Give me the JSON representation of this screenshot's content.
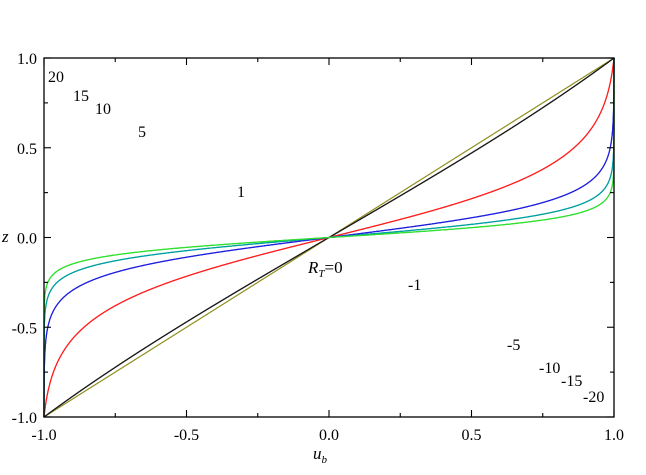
{
  "chart_data": {
    "type": "line",
    "xlabel": {
      "main": "u",
      "sub": "b"
    },
    "ylabel": "z",
    "xlim": [
      -1.0,
      1.0
    ],
    "ylim": [
      -1.0,
      1.0
    ],
    "xticks": [
      "-1.0",
      "-0.5",
      "0.0",
      "0.5",
      "1.0"
    ],
    "yticks": [
      "-1.0",
      "-0.5",
      "0.0",
      "0.5",
      "1.0"
    ],
    "annotation": {
      "main": "R",
      "sub": "T",
      "rest": "=0"
    },
    "colors": {
      "0": "#8f8f1e",
      "1": "#1a1a1a",
      "5": "#ff2020",
      "10": "#2020e0",
      "15": "#00a0a0",
      "20": "#30e030"
    },
    "series": [
      {
        "name": "20",
        "R": 20,
        "label": "20"
      },
      {
        "name": "15",
        "R": 15,
        "label": "15"
      },
      {
        "name": "10",
        "R": 10,
        "label": "10"
      },
      {
        "name": "5",
        "R": 5,
        "label": "5"
      },
      {
        "name": "1",
        "R": 1,
        "label": "1"
      },
      {
        "name": "0",
        "R": 0,
        "label": ""
      },
      {
        "name": "-1",
        "R": -1,
        "label": "-1"
      },
      {
        "name": "-5",
        "R": -5,
        "label": "-5"
      },
      {
        "name": "-10",
        "R": -10,
        "label": "-10"
      },
      {
        "name": "-15",
        "R": -15,
        "label": "-15"
      },
      {
        "name": "-20",
        "R": -20,
        "label": "-20"
      }
    ]
  }
}
